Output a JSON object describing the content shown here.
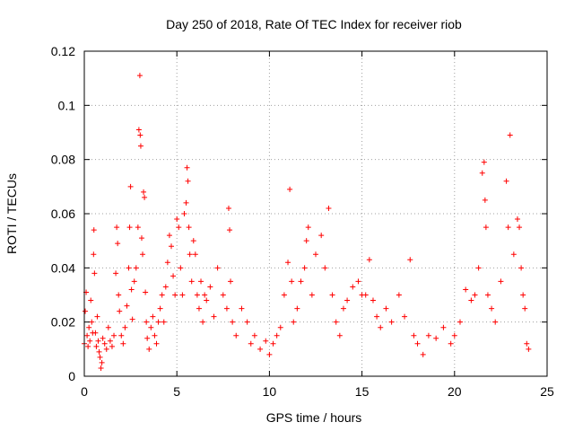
{
  "chart_data": {
    "type": "scatter",
    "title": "Day 250 of 2018, Rate Of TEC Index for receiver riob",
    "xlabel": "GPS time / hours",
    "ylabel": "ROTI / TECUs",
    "xlim": [
      0,
      25
    ],
    "ylim": [
      0,
      0.12
    ],
    "xticks": [
      0,
      5,
      10,
      15,
      20,
      25
    ],
    "yticks": [
      0,
      0.02,
      0.04,
      0.06,
      0.08,
      0.1,
      0.12
    ],
    "xtick_labels": [
      "0",
      "5",
      "10",
      "15",
      "20",
      "25"
    ],
    "ytick_labels": [
      "0",
      "0.02",
      "0.04",
      "0.06",
      "0.08",
      "0.1",
      "0.12"
    ],
    "grid": true,
    "marker": "plus",
    "color": "#ff0000",
    "series": [
      {
        "values": [
          [
            0.0,
            0.012
          ],
          [
            0.05,
            0.024
          ],
          [
            0.1,
            0.031
          ],
          [
            0.15,
            0.015
          ],
          [
            0.2,
            0.011
          ],
          [
            0.25,
            0.018
          ],
          [
            0.3,
            0.013
          ],
          [
            0.35,
            0.028
          ],
          [
            0.4,
            0.02
          ],
          [
            0.45,
            0.016
          ],
          [
            0.5,
            0.045
          ],
          [
            0.52,
            0.054
          ],
          [
            0.55,
            0.038
          ],
          [
            0.6,
            0.016
          ],
          [
            0.65,
            0.011
          ],
          [
            0.7,
            0.022
          ],
          [
            0.75,
            0.013
          ],
          [
            0.8,
            0.009
          ],
          [
            0.85,
            0.007
          ],
          [
            0.9,
            0.003
          ],
          [
            0.95,
            0.005
          ],
          [
            1.0,
            0.014
          ],
          [
            1.1,
            0.012
          ],
          [
            1.2,
            0.01
          ],
          [
            1.3,
            0.018
          ],
          [
            1.4,
            0.013
          ],
          [
            1.5,
            0.011
          ],
          [
            1.6,
            0.015
          ],
          [
            1.7,
            0.038
          ],
          [
            1.75,
            0.055
          ],
          [
            1.8,
            0.049
          ],
          [
            1.85,
            0.03
          ],
          [
            1.9,
            0.024
          ],
          [
            2.0,
            0.015
          ],
          [
            2.1,
            0.012
          ],
          [
            2.2,
            0.018
          ],
          [
            2.3,
            0.026
          ],
          [
            2.4,
            0.04
          ],
          [
            2.45,
            0.055
          ],
          [
            2.5,
            0.07
          ],
          [
            2.55,
            0.032
          ],
          [
            2.6,
            0.021
          ],
          [
            2.7,
            0.035
          ],
          [
            2.8,
            0.04
          ],
          [
            2.9,
            0.055
          ],
          [
            2.95,
            0.091
          ],
          [
            3.0,
            0.111
          ],
          [
            3.02,
            0.089
          ],
          [
            3.05,
            0.085
          ],
          [
            3.1,
            0.051
          ],
          [
            3.15,
            0.045
          ],
          [
            3.2,
            0.068
          ],
          [
            3.25,
            0.066
          ],
          [
            3.3,
            0.031
          ],
          [
            3.35,
            0.02
          ],
          [
            3.4,
            0.014
          ],
          [
            3.5,
            0.01
          ],
          [
            3.6,
            0.018
          ],
          [
            3.7,
            0.022
          ],
          [
            3.8,
            0.015
          ],
          [
            3.9,
            0.012
          ],
          [
            4.0,
            0.02
          ],
          [
            4.1,
            0.025
          ],
          [
            4.2,
            0.03
          ],
          [
            4.3,
            0.02
          ],
          [
            4.4,
            0.033
          ],
          [
            4.5,
            0.042
          ],
          [
            4.6,
            0.052
          ],
          [
            4.7,
            0.048
          ],
          [
            4.8,
            0.037
          ],
          [
            4.9,
            0.03
          ],
          [
            5.0,
            0.058
          ],
          [
            5.1,
            0.055
          ],
          [
            5.2,
            0.04
          ],
          [
            5.3,
            0.03
          ],
          [
            5.4,
            0.06
          ],
          [
            5.5,
            0.064
          ],
          [
            5.55,
            0.077
          ],
          [
            5.6,
            0.072
          ],
          [
            5.65,
            0.055
          ],
          [
            5.7,
            0.045
          ],
          [
            5.8,
            0.035
          ],
          [
            5.9,
            0.05
          ],
          [
            6.0,
            0.045
          ],
          [
            6.1,
            0.03
          ],
          [
            6.2,
            0.025
          ],
          [
            6.3,
            0.035
          ],
          [
            6.4,
            0.02
          ],
          [
            6.5,
            0.03
          ],
          [
            6.6,
            0.028
          ],
          [
            6.8,
            0.033
          ],
          [
            7.0,
            0.022
          ],
          [
            7.2,
            0.04
          ],
          [
            7.5,
            0.03
          ],
          [
            7.7,
            0.025
          ],
          [
            7.8,
            0.062
          ],
          [
            7.85,
            0.054
          ],
          [
            7.9,
            0.035
          ],
          [
            8.0,
            0.02
          ],
          [
            8.2,
            0.015
          ],
          [
            8.5,
            0.025
          ],
          [
            8.8,
            0.02
          ],
          [
            9.0,
            0.012
          ],
          [
            9.2,
            0.015
          ],
          [
            9.5,
            0.01
          ],
          [
            9.8,
            0.013
          ],
          [
            10.0,
            0.008
          ],
          [
            10.2,
            0.012
          ],
          [
            10.4,
            0.015
          ],
          [
            10.6,
            0.018
          ],
          [
            10.8,
            0.03
          ],
          [
            11.0,
            0.042
          ],
          [
            11.1,
            0.069
          ],
          [
            11.2,
            0.035
          ],
          [
            11.3,
            0.02
          ],
          [
            11.5,
            0.025
          ],
          [
            11.7,
            0.035
          ],
          [
            11.9,
            0.04
          ],
          [
            12.0,
            0.05
          ],
          [
            12.1,
            0.055
          ],
          [
            12.3,
            0.03
          ],
          [
            12.5,
            0.045
          ],
          [
            12.8,
            0.052
          ],
          [
            13.0,
            0.04
          ],
          [
            13.2,
            0.062
          ],
          [
            13.4,
            0.03
          ],
          [
            13.6,
            0.02
          ],
          [
            13.8,
            0.015
          ],
          [
            14.0,
            0.025
          ],
          [
            14.2,
            0.028
          ],
          [
            14.5,
            0.033
          ],
          [
            14.8,
            0.035
          ],
          [
            15.0,
            0.03
          ],
          [
            15.2,
            0.03
          ],
          [
            15.4,
            0.043
          ],
          [
            15.6,
            0.028
          ],
          [
            15.8,
            0.022
          ],
          [
            16.0,
            0.018
          ],
          [
            16.3,
            0.025
          ],
          [
            16.6,
            0.02
          ],
          [
            17.0,
            0.03
          ],
          [
            17.3,
            0.022
          ],
          [
            17.6,
            0.043
          ],
          [
            17.8,
            0.015
          ],
          [
            18.0,
            0.012
          ],
          [
            18.3,
            0.008
          ],
          [
            18.6,
            0.015
          ],
          [
            19.0,
            0.014
          ],
          [
            19.4,
            0.018
          ],
          [
            19.8,
            0.012
          ],
          [
            20.0,
            0.015
          ],
          [
            20.3,
            0.02
          ],
          [
            20.6,
            0.032
          ],
          [
            20.9,
            0.028
          ],
          [
            21.1,
            0.03
          ],
          [
            21.3,
            0.04
          ],
          [
            21.5,
            0.075
          ],
          [
            21.6,
            0.079
          ],
          [
            21.65,
            0.065
          ],
          [
            21.7,
            0.055
          ],
          [
            21.8,
            0.03
          ],
          [
            22.0,
            0.025
          ],
          [
            22.2,
            0.02
          ],
          [
            22.5,
            0.035
          ],
          [
            22.8,
            0.072
          ],
          [
            22.9,
            0.055
          ],
          [
            23.0,
            0.089
          ],
          [
            23.2,
            0.045
          ],
          [
            23.4,
            0.058
          ],
          [
            23.5,
            0.055
          ],
          [
            23.6,
            0.04
          ],
          [
            23.7,
            0.03
          ],
          [
            23.8,
            0.025
          ],
          [
            23.9,
            0.012
          ],
          [
            24.0,
            0.01
          ]
        ]
      }
    ]
  }
}
